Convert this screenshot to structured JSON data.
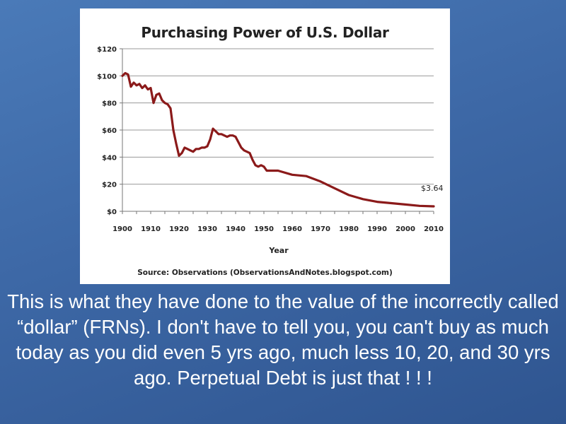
{
  "chart_data": {
    "type": "line",
    "title": "Purchasing Power of U.S. Dollar",
    "xlabel": "Year",
    "ylabel": "",
    "source": "Source: Observations (ObservationsAndNotes.blogspot.com)",
    "xlim": [
      1900,
      2010
    ],
    "ylim": [
      0,
      120
    ],
    "x_ticks": [
      "1900",
      "1910",
      "1920",
      "1930",
      "1940",
      "1950",
      "1960",
      "1970",
      "1980",
      "1990",
      "2000",
      "2010"
    ],
    "y_ticks": [
      "$0",
      "$20",
      "$40",
      "$60",
      "$80",
      "$100",
      "$120"
    ],
    "grid": "horizontal",
    "line_color": "#8b1a1a",
    "annotation": {
      "text": "$3.64",
      "x": 2010,
      "y": 3.64
    },
    "series": [
      {
        "x": [
          1900,
          1901,
          1902,
          1903,
          1904,
          1905,
          1906,
          1907,
          1908,
          1909,
          1910,
          1911,
          1912,
          1913,
          1914,
          1915,
          1916,
          1917,
          1918,
          1919,
          1920,
          1921,
          1922,
          1923,
          1924,
          1925,
          1926,
          1927,
          1928,
          1929,
          1930,
          1931,
          1932,
          1933,
          1934,
          1935,
          1936,
          1937,
          1938,
          1939,
          1940,
          1941,
          1942,
          1943,
          1944,
          1945,
          1946,
          1947,
          1948,
          1949,
          1950,
          1951,
          1952,
          1955,
          1960,
          1965,
          1970,
          1975,
          1980,
          1985,
          1990,
          1995,
          2000,
          2005,
          2010
        ],
        "values": [
          100,
          102,
          101,
          92,
          95,
          93,
          94,
          91,
          93,
          90,
          91,
          80,
          86,
          87,
          82,
          80,
          79,
          76,
          60,
          50,
          41,
          43,
          47,
          46,
          45,
          44,
          46,
          46,
          47,
          47,
          48,
          53,
          61,
          59,
          57,
          57,
          56,
          55,
          56,
          56,
          55,
          51,
          47,
          45,
          44,
          43,
          38,
          34,
          33,
          34,
          33,
          30,
          30,
          30,
          27,
          26,
          22,
          17,
          12,
          9,
          7,
          6,
          5,
          4,
          3.64
        ]
      }
    ]
  },
  "caption": "This is what they have done to the value of the incorrectly called “dollar” (FRNs). I don't have to tell you, you can't buy as much today as you did even 5 yrs ago, much less 10, 20, and 30 yrs ago. Perpetual Debt is just that ! ! !"
}
